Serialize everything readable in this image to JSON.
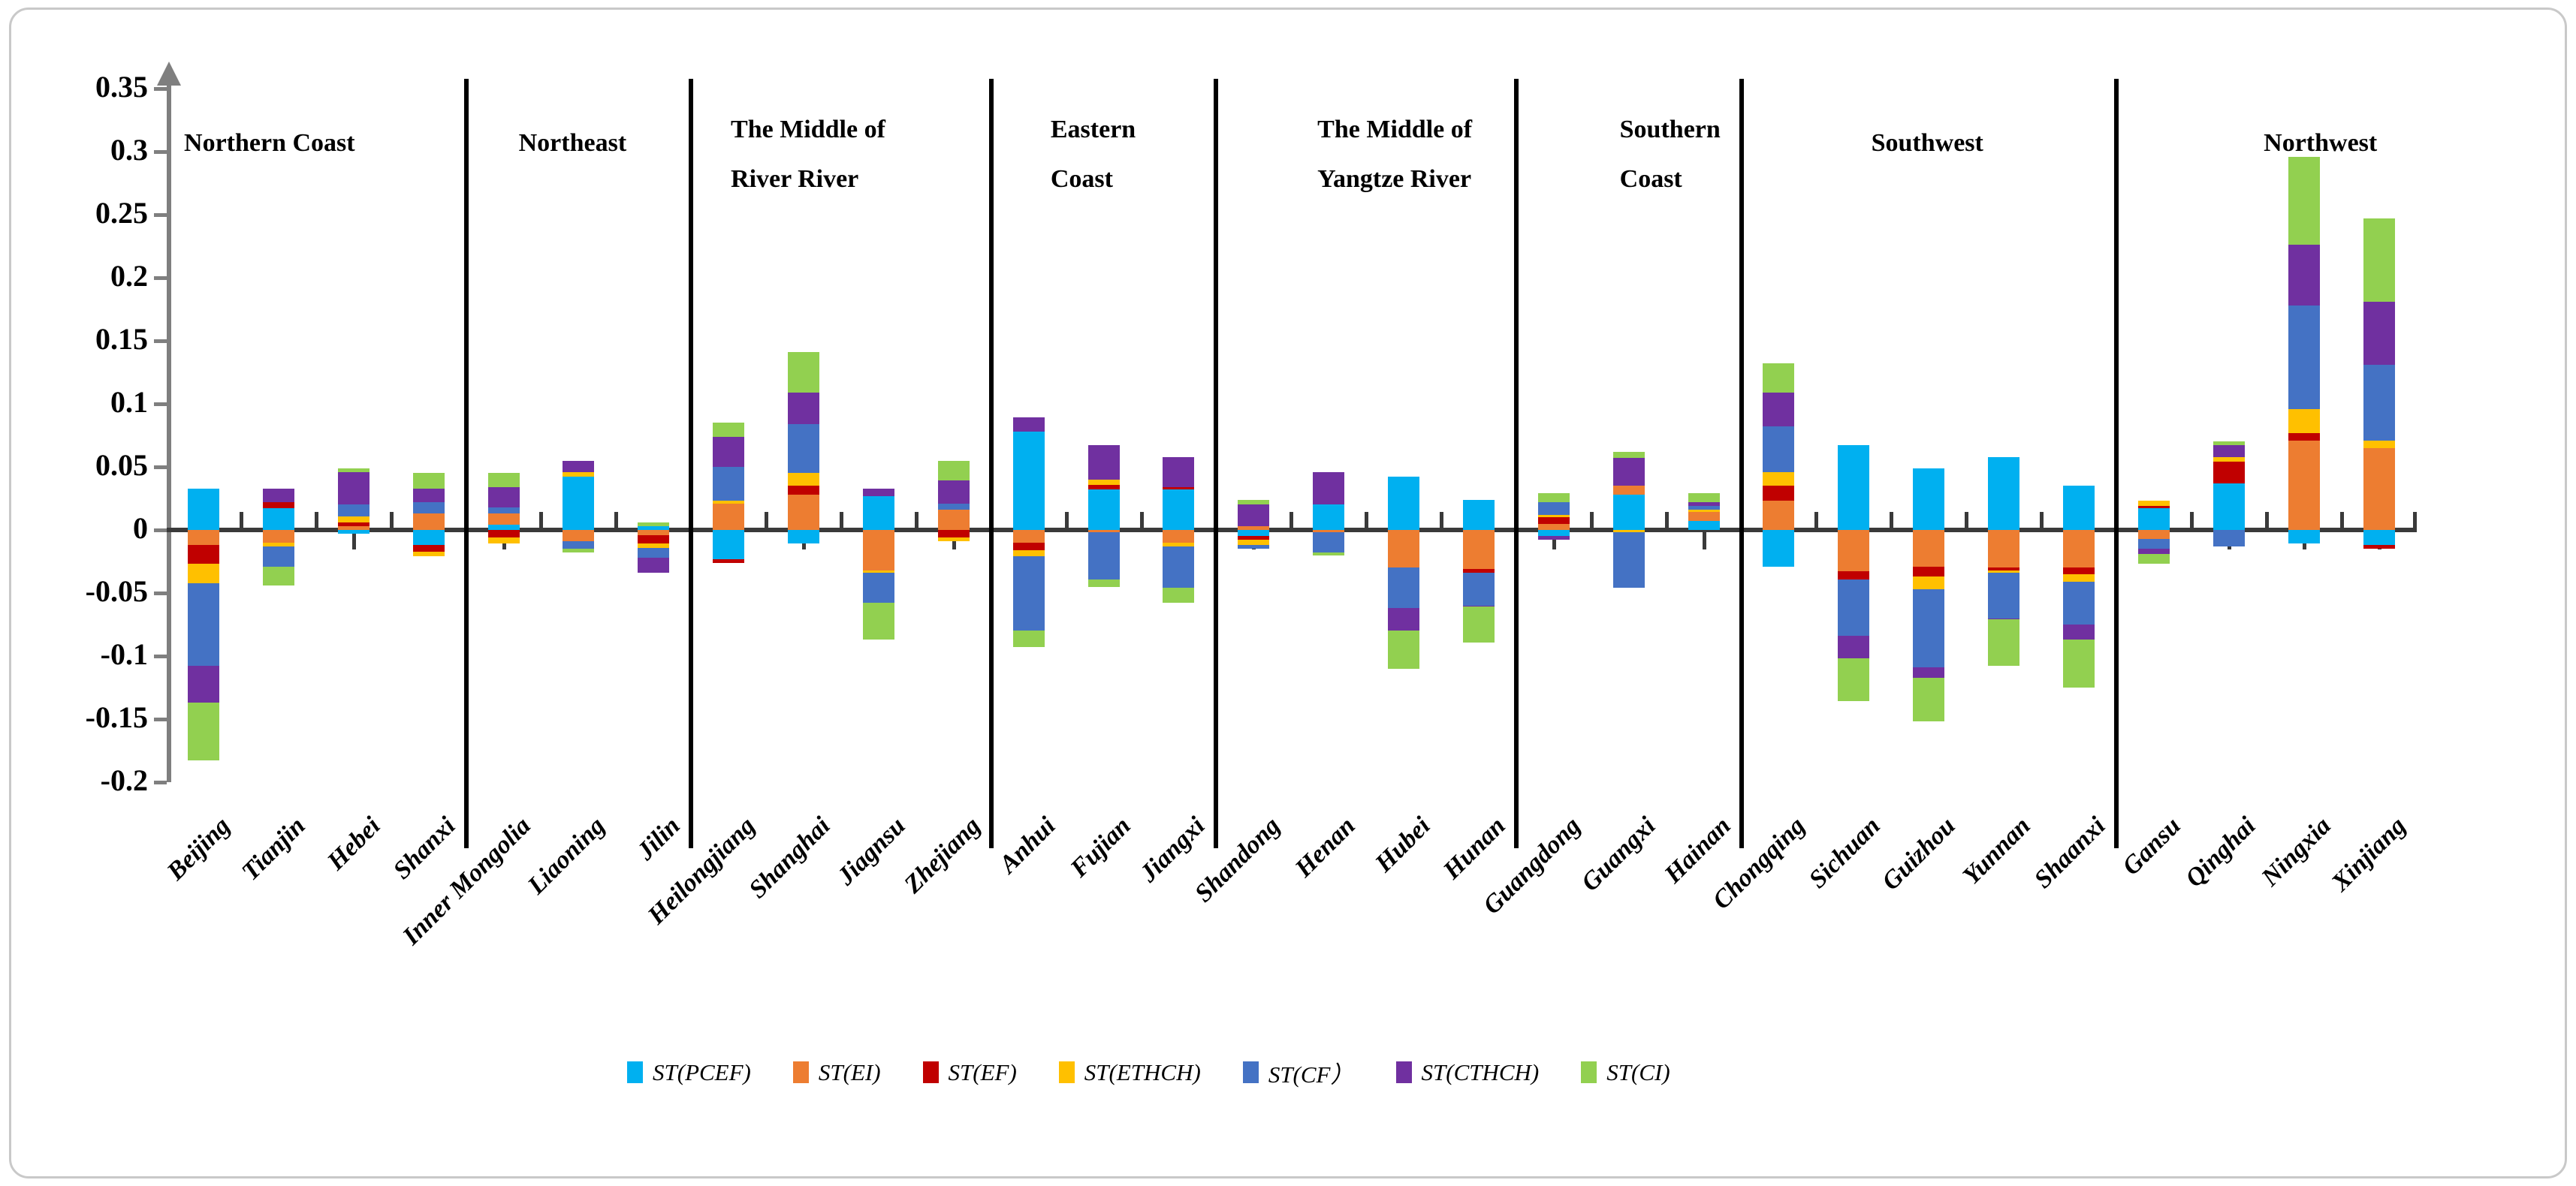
{
  "chart_data": {
    "type": "bar",
    "stacked": true,
    "title": "",
    "xlabel": "",
    "ylabel": "",
    "ylim": [
      -0.2,
      0.35
    ],
    "ytick_step": 0.05,
    "ytick_labels": [
      "0.35",
      "0.3",
      "0.25",
      "0.2",
      "0.15",
      "0.1",
      "0.05",
      "0",
      "-0.05",
      "-0.1",
      "-0.15",
      "-0.2"
    ],
    "grid": false,
    "legend_position": "bottom",
    "series": [
      {
        "key": "PCEF",
        "label": "ST(PCEF)",
        "color": "#00B0F0"
      },
      {
        "key": "EI",
        "label": "ST(EI)",
        "color": "#ED7D31"
      },
      {
        "key": "EF",
        "label": "ST(EF)",
        "color": "#C00000"
      },
      {
        "key": "ETHCH",
        "label": "ST(ETHCH)",
        "color": "#FFC000"
      },
      {
        "key": "CF",
        "label": "ST(CF）",
        "color": "#4472C4"
      },
      {
        "key": "CTHCH",
        "label": "ST(CTHCH)",
        "color": "#7030A0"
      },
      {
        "key": "CI",
        "label": "ST(CI)",
        "color": "#92D050"
      }
    ],
    "regions": [
      {
        "name": "Northern Coast",
        "label_lines": [
          "Northern Coast"
        ],
        "provinces": [
          {
            "name": "Beijing",
            "values": {
              "PCEF": 0.033,
              "EI": -0.012,
              "EF": -0.015,
              "ETHCH": -0.015,
              "CF": -0.066,
              "CTHCH": -0.029,
              "CI": -0.046
            }
          },
          {
            "name": "Tianjin",
            "values": {
              "PCEF": 0.017,
              "EI": -0.01,
              "EF": 0.005,
              "ETHCH": -0.003,
              "CF": -0.016,
              "CTHCH": 0.011,
              "CI": -0.015
            }
          },
          {
            "name": "Hebei",
            "values": {
              "PCEF": -0.003,
              "EI": 0.003,
              "EF": 0.003,
              "ETHCH": 0.005,
              "CF": 0.009,
              "CTHCH": 0.026,
              "CI": 0.003
            }
          },
          {
            "name": "Shanxi",
            "values": {
              "PCEF": -0.012,
              "EI": 0.013,
              "EF": -0.005,
              "ETHCH": -0.004,
              "CF": 0.009,
              "CTHCH": 0.011,
              "CI": 0.012
            }
          }
        ]
      },
      {
        "name": "Northeast",
        "label_lines": [
          "Northeast"
        ],
        "provinces": [
          {
            "name": "Inner Mongolia",
            "values": {
              "PCEF": 0.004,
              "EI": 0.009,
              "EF": -0.006,
              "ETHCH": -0.005,
              "CF": 0.005,
              "CTHCH": 0.016,
              "CI": 0.011
            }
          },
          {
            "name": "Liaoning",
            "values": {
              "PCEF": 0.042,
              "EI": -0.009,
              "EF": 0,
              "ETHCH": 0.004,
              "CF": -0.006,
              "CTHCH": 0.009,
              "CI": -0.003
            }
          },
          {
            "name": "Jilin",
            "values": {
              "PCEF": 0.003,
              "EI": -0.004,
              "EF": -0.007,
              "ETHCH": -0.003,
              "CF": -0.008,
              "CTHCH": -0.012,
              "CI": 0.003
            }
          }
        ]
      },
      {
        "name": "The Middle of River River",
        "label_lines": [
          "The Middle of",
          "River River"
        ],
        "provinces": [
          {
            "name": "Heilongjiang",
            "values": {
              "PCEF": -0.023,
              "EI": 0.021,
              "EF": -0.003,
              "ETHCH": 0.002,
              "CF": 0.027,
              "CTHCH": 0.024,
              "CI": 0.011
            }
          },
          {
            "name": "Shanghai",
            "values": {
              "PCEF": -0.011,
              "EI": 0.028,
              "EF": 0.007,
              "ETHCH": 0.01,
              "CF": 0.039,
              "CTHCH": 0.025,
              "CI": 0.032
            }
          },
          {
            "name": "Jiagnsu",
            "values": {
              "PCEF": 0.027,
              "EI": -0.032,
              "EF": 0,
              "ETHCH": -0.002,
              "CF": -0.024,
              "CTHCH": 0.006,
              "CI": -0.029
            }
          },
          {
            "name": "Zhejiang",
            "values": {
              "PCEF": 0,
              "EI": 0.016,
              "EF": -0.006,
              "ETHCH": -0.003,
              "CF": 0.005,
              "CTHCH": 0.018,
              "CI": 0.016
            }
          }
        ]
      },
      {
        "name": "Eastern Coast",
        "label_lines": [
          "Eastern",
          "Coast"
        ],
        "provinces": [
          {
            "name": "Anhui",
            "values": {
              "PCEF": 0.078,
              "EI": -0.01,
              "EF": -0.006,
              "ETHCH": -0.005,
              "CF": -0.059,
              "CTHCH": 0.011,
              "CI": -0.013
            }
          },
          {
            "name": "Fujian",
            "values": {
              "PCEF": 0.032,
              "EI": -0.002,
              "EF": 0.004,
              "ETHCH": 0.004,
              "CF": -0.037,
              "CTHCH": 0.027,
              "CI": -0.006
            }
          },
          {
            "name": "Jiangxi",
            "values": {
              "PCEF": 0.032,
              "EI": -0.01,
              "EF": 0.002,
              "ETHCH": -0.003,
              "CF": -0.033,
              "CTHCH": 0.024,
              "CI": -0.012
            }
          }
        ]
      },
      {
        "name": "The Middle of Yangtze River",
        "label_lines": [
          "The Middle of",
          "Yangtze River"
        ],
        "provinces": [
          {
            "name": "Shandong",
            "values": {
              "PCEF": -0.005,
              "EI": 0.003,
              "EF": -0.003,
              "ETHCH": -0.004,
              "CF": -0.003,
              "CTHCH": 0.017,
              "CI": 0.004
            }
          },
          {
            "name": "Henan",
            "values": {
              "PCEF": 0.02,
              "EI": -0.002,
              "EF": 0,
              "ETHCH": 0,
              "CF": -0.016,
              "CTHCH": 0.026,
              "CI": -0.002
            }
          },
          {
            "name": "Hubei",
            "values": {
              "PCEF": 0.042,
              "EI": -0.03,
              "EF": 0,
              "ETHCH": 0,
              "CF": -0.032,
              "CTHCH": -0.018,
              "CI": -0.03
            }
          },
          {
            "name": "Hunan",
            "values": {
              "PCEF": 0.024,
              "EI": -0.031,
              "EF": -0.003,
              "ETHCH": 0,
              "CF": -0.026,
              "CTHCH": -0.001,
              "CI": -0.028
            }
          }
        ]
      },
      {
        "name": "Southern Coast",
        "label_lines": [
          "Southern",
          "Coast"
        ],
        "provinces": [
          {
            "name": "Guangdong",
            "values": {
              "PCEF": -0.005,
              "EI": 0.005,
              "EF": 0.005,
              "ETHCH": 0.002,
              "CF": 0.01,
              "CTHCH": -0.003,
              "CI": 0.007
            }
          },
          {
            "name": "Guangxi",
            "values": {
              "PCEF": 0.028,
              "EI": 0.007,
              "EF": 0,
              "ETHCH": -0.002,
              "CF": -0.044,
              "CTHCH": 0.022,
              "CI": 0.005
            }
          },
          {
            "name": "Hainan",
            "values": {
              "PCEF": 0.007,
              "EI": 0.007,
              "EF": 0,
              "ETHCH": 0.002,
              "CF": 0.003,
              "CTHCH": 0.003,
              "CI": 0.007
            }
          }
        ]
      },
      {
        "name": "Southwest",
        "label_lines": [
          "Southwest"
        ],
        "provinces": [
          {
            "name": "Chongqing",
            "values": {
              "PCEF": -0.029,
              "EI": 0.023,
              "EF": 0.012,
              "ETHCH": 0.011,
              "CF": 0.036,
              "CTHCH": 0.027,
              "CI": 0.023
            }
          },
          {
            "name": "Sichuan",
            "values": {
              "PCEF": 0.067,
              "EI": -0.033,
              "EF": -0.006,
              "ETHCH": 0,
              "CF": -0.045,
              "CTHCH": -0.018,
              "CI": -0.034
            }
          },
          {
            "name": "Guizhou",
            "values": {
              "PCEF": 0.049,
              "EI": -0.029,
              "EF": -0.008,
              "ETHCH": -0.01,
              "CF": -0.062,
              "CTHCH": -0.008,
              "CI": -0.035
            }
          },
          {
            "name": "Yunnan",
            "values": {
              "PCEF": 0.058,
              "EI": -0.03,
              "EF": -0.002,
              "ETHCH": -0.002,
              "CF": -0.036,
              "CTHCH": -0.001,
              "CI": -0.037
            }
          },
          {
            "name": "Shaanxi",
            "values": {
              "PCEF": 0.035,
              "EI": -0.03,
              "EF": -0.005,
              "ETHCH": -0.006,
              "CF": -0.034,
              "CTHCH": -0.012,
              "CI": -0.038
            }
          }
        ]
      },
      {
        "name": "Northwest",
        "label_lines": [
          "Northwest"
        ],
        "provinces": [
          {
            "name": "Gansu",
            "values": {
              "PCEF": 0.017,
              "EI": -0.007,
              "EF": 0.002,
              "ETHCH": 0.004,
              "CF": -0.008,
              "CTHCH": -0.004,
              "CI": -0.008
            }
          },
          {
            "name": "Qinghai",
            "values": {
              "PCEF": 0.037,
              "EI": 0,
              "EF": 0.017,
              "ETHCH": 0.004,
              "CF": -0.013,
              "CTHCH": 0.009,
              "CI": 0.003
            }
          },
          {
            "name": "Ningxia",
            "values": {
              "PCEF": -0.011,
              "EI": 0.071,
              "EF": 0.006,
              "ETHCH": 0.019,
              "CF": 0.082,
              "CTHCH": 0.048,
              "CI": 0.07
            }
          },
          {
            "name": "Xinjiang",
            "values": {
              "PCEF": -0.012,
              "EI": 0.065,
              "EF": -0.003,
              "ETHCH": 0.006,
              "CF": 0.06,
              "CTHCH": 0.05,
              "CI": 0.066
            }
          }
        ]
      }
    ],
    "colors": {
      "x_axis": "#3a3a3a",
      "y_axis": "#7f7f7f",
      "group_divider": "#000000",
      "frame_border": "#c9c9c9"
    }
  }
}
